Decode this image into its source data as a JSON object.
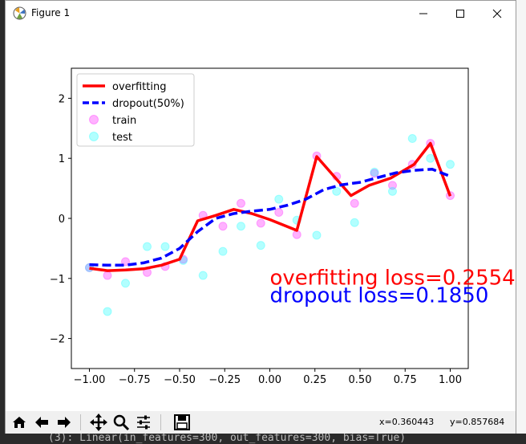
{
  "window": {
    "title": "Figure 1"
  },
  "background": {
    "console_line": "(3): Linear(in_features=300, out_features=300, bias=True)"
  },
  "toolbar": {
    "buttons": [
      "home-icon",
      "back-icon",
      "forward-icon",
      "pan-icon",
      "zoom-icon",
      "configure-icon",
      "save-icon"
    ],
    "coord_x": "x=0.360443",
    "coord_y": "y=0.857684"
  },
  "colors": {
    "overfitting": "#ff0000",
    "dropout": "#0000ff",
    "train": "#ff00ff",
    "test": "#00ffff"
  },
  "chart_data": {
    "type": "scatter",
    "xlim": [
      -1.1,
      1.1
    ],
    "ylim": [
      -2.5,
      2.5
    ],
    "xticks": [
      -1.0,
      -0.75,
      -0.5,
      -0.25,
      0.0,
      0.25,
      0.5,
      0.75,
      1.0
    ],
    "xtick_labels": [
      "−1.00",
      "−0.75",
      "−0.50",
      "−0.25",
      "0.00",
      "0.25",
      "0.50",
      "0.75",
      "1.00"
    ],
    "yticks": [
      2,
      1,
      0,
      -1,
      -2
    ],
    "ytick_labels": [
      "2",
      "1",
      "0",
      "−1",
      "−2"
    ],
    "legend": [
      "overfitting",
      "dropout(50%)",
      "train",
      "test"
    ],
    "series": [
      {
        "name": "overfitting",
        "kind": "line",
        "x": [
          -1.0,
          -0.9,
          -0.8,
          -0.7,
          -0.6,
          -0.5,
          -0.4,
          -0.3,
          -0.2,
          -0.1,
          0.0,
          0.15,
          0.26,
          0.35,
          0.45,
          0.55,
          0.67,
          0.8,
          0.89,
          1.0
        ],
        "y": [
          -0.83,
          -0.87,
          -0.86,
          -0.84,
          -0.78,
          -0.68,
          -0.04,
          0.05,
          0.15,
          0.08,
          -0.02,
          -0.2,
          1.03,
          0.72,
          0.38,
          0.55,
          0.67,
          0.9,
          1.25,
          0.37
        ]
      },
      {
        "name": "dropout(50%)",
        "kind": "line",
        "x": [
          -1.0,
          -0.9,
          -0.8,
          -0.7,
          -0.6,
          -0.5,
          -0.4,
          -0.3,
          -0.2,
          -0.1,
          0.0,
          0.1,
          0.2,
          0.3,
          0.4,
          0.5,
          0.6,
          0.7,
          0.8,
          0.9,
          1.0
        ],
        "y": [
          -0.77,
          -0.78,
          -0.78,
          -0.74,
          -0.66,
          -0.5,
          -0.22,
          0.0,
          0.08,
          0.12,
          0.15,
          0.22,
          0.32,
          0.48,
          0.56,
          0.6,
          0.68,
          0.76,
          0.8,
          0.82,
          0.7
        ]
      },
      {
        "name": "train",
        "kind": "scatter",
        "x": [
          -1.0,
          -0.9,
          -0.8,
          -0.68,
          -0.58,
          -0.48,
          -0.37,
          -0.26,
          -0.16,
          -0.05,
          0.05,
          0.15,
          0.26,
          0.37,
          0.47,
          0.58,
          0.68,
          0.79,
          0.89,
          1.0
        ],
        "y": [
          -0.82,
          -0.95,
          -0.72,
          -0.9,
          -0.8,
          -0.68,
          0.05,
          -0.13,
          0.25,
          -0.08,
          0.1,
          -0.27,
          1.04,
          0.7,
          0.25,
          0.75,
          0.55,
          0.9,
          1.25,
          0.38
        ]
      },
      {
        "name": "test",
        "kind": "scatter",
        "x": [
          -1.0,
          -0.9,
          -0.8,
          -0.68,
          -0.58,
          -0.48,
          -0.37,
          -0.26,
          -0.16,
          -0.05,
          0.05,
          0.15,
          0.26,
          0.37,
          0.47,
          0.58,
          0.68,
          0.79,
          0.89,
          1.0
        ],
        "y": [
          -0.82,
          -1.55,
          -1.08,
          -0.47,
          -0.47,
          -0.7,
          -0.95,
          -0.55,
          -0.13,
          -0.45,
          0.32,
          -0.03,
          -0.28,
          0.45,
          -0.07,
          0.77,
          0.45,
          1.33,
          1.0,
          0.9
        ]
      }
    ],
    "annotations": [
      {
        "text": "overfitting loss=0.2554",
        "x": 0.0,
        "y": -1.1,
        "color": "#ff0000"
      },
      {
        "text": "dropout loss=0.1850",
        "x": 0.0,
        "y": -1.4,
        "color": "#0000ff"
      }
    ]
  }
}
